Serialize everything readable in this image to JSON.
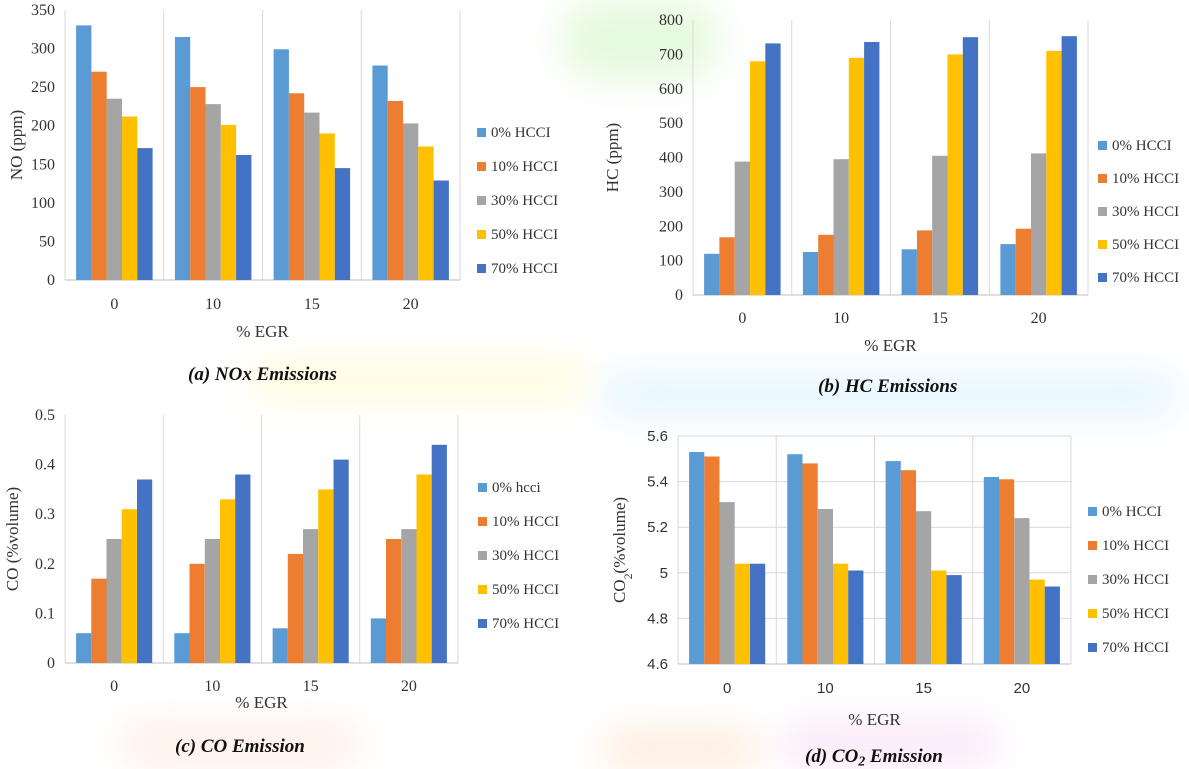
{
  "captions": {
    "a": "(a) NOx Emissions",
    "b": "(b) HC Emissions",
    "c": "(c) CO Emission",
    "d_prefix": "(d) CO",
    "d_sub": "2",
    "d_suffix": " Emission"
  },
  "colors": {
    "s0": "#5B9BD5",
    "s1": "#ED7D31",
    "s2": "#A5A5A5",
    "s3": "#FFC000",
    "s4": "#4472C4",
    "grid": "#d9d9d9"
  },
  "chart_data": [
    {
      "id": "a",
      "type": "bar",
      "xlabel": "% EGR",
      "ylabel": "NO (ppm)",
      "ylabel_sub": "",
      "categories": [
        "0",
        "10",
        "15",
        "20"
      ],
      "ylim": [
        0,
        350
      ],
      "yticks": [
        0,
        50,
        100,
        150,
        200,
        250,
        300,
        350
      ],
      "ytick_labels": [
        "0",
        "50",
        "100",
        "150",
        "200",
        "250",
        "300",
        "350"
      ],
      "tick_font": "serif",
      "grid": "vertical",
      "legend_position": "right",
      "series": [
        {
          "name": "0% HCCI",
          "values": [
            330,
            315,
            299,
            278
          ]
        },
        {
          "name": "10% HCCI",
          "values": [
            270,
            250,
            242,
            232
          ]
        },
        {
          "name": "30% HCCI",
          "values": [
            235,
            228,
            217,
            203
          ]
        },
        {
          "name": "50% HCCI",
          "values": [
            212,
            201,
            190,
            173
          ]
        },
        {
          "name": "70% HCCI",
          "values": [
            171,
            162,
            145,
            129
          ]
        }
      ]
    },
    {
      "id": "b",
      "type": "bar",
      "xlabel": "% EGR",
      "ylabel": "HC (ppm)",
      "ylabel_sub": "",
      "categories": [
        "0",
        "10",
        "15",
        "20"
      ],
      "ylim": [
        0,
        800
      ],
      "yticks": [
        0,
        100,
        200,
        300,
        400,
        500,
        600,
        700,
        800
      ],
      "ytick_labels": [
        "0",
        "100",
        "200",
        "300",
        "400",
        "500",
        "600",
        "700",
        "800"
      ],
      "tick_font": "serif",
      "grid": "vertical",
      "legend_position": "right",
      "series": [
        {
          "name": "0% HCCI",
          "values": [
            120,
            125,
            133,
            148
          ]
        },
        {
          "name": "10% HCCI",
          "values": [
            168,
            175,
            188,
            193
          ]
        },
        {
          "name": "30% HCCI",
          "values": [
            388,
            395,
            405,
            412
          ]
        },
        {
          "name": "50% HCCI",
          "values": [
            680,
            690,
            700,
            710
          ]
        },
        {
          "name": "70% HCCI",
          "values": [
            732,
            736,
            750,
            753
          ]
        }
      ]
    },
    {
      "id": "c",
      "type": "bar",
      "xlabel": "% EGR",
      "ylabel": "CO (%volume)",
      "ylabel_sub": "",
      "categories": [
        "0",
        "10",
        "15",
        "20"
      ],
      "ylim": [
        0,
        0.5
      ],
      "yticks": [
        0,
        0.1,
        0.2,
        0.3,
        0.4,
        0.5
      ],
      "ytick_labels": [
        "0",
        "0.1",
        "0.2",
        "0.3",
        "0.4",
        "0.5"
      ],
      "tick_font": "serif",
      "grid": "vertical",
      "legend_position": "right",
      "series": [
        {
          "name": "0% hcci",
          "values": [
            0.06,
            0.06,
            0.07,
            0.09
          ]
        },
        {
          "name": "10% HCCI",
          "values": [
            0.17,
            0.2,
            0.22,
            0.25
          ]
        },
        {
          "name": "30% HCCI",
          "values": [
            0.25,
            0.25,
            0.27,
            0.27
          ]
        },
        {
          "name": "50% HCCI",
          "values": [
            0.31,
            0.33,
            0.35,
            0.38
          ]
        },
        {
          "name": "70% HCCI",
          "values": [
            0.37,
            0.38,
            0.41,
            0.44
          ]
        }
      ]
    },
    {
      "id": "d",
      "type": "bar",
      "xlabel": "% EGR",
      "ylabel": "CO",
      "ylabel_sub": "2",
      "ylabel_suffix": "(%volume)",
      "categories": [
        "0",
        "10",
        "15",
        "20"
      ],
      "ylim": [
        4.6,
        5.6
      ],
      "yticks": [
        4.6,
        4.8,
        5.0,
        5.2,
        5.4,
        5.6
      ],
      "ytick_labels": [
        "4.6",
        "4.8",
        "5",
        "5.2",
        "5.4",
        "5.6"
      ],
      "tick_font": "sans",
      "grid": "both",
      "legend_position": "right",
      "series": [
        {
          "name": "0% HCCI",
          "values": [
            5.53,
            5.52,
            5.49,
            5.42
          ]
        },
        {
          "name": "10% HCCI",
          "values": [
            5.51,
            5.48,
            5.45,
            5.41
          ]
        },
        {
          "name": "30% HCCI",
          "values": [
            5.31,
            5.28,
            5.27,
            5.24
          ]
        },
        {
          "name": "50% HCCI",
          "values": [
            5.04,
            5.04,
            5.01,
            4.97
          ]
        },
        {
          "name": "70% HCCI",
          "values": [
            5.04,
            5.01,
            4.99,
            4.94
          ]
        }
      ]
    }
  ]
}
